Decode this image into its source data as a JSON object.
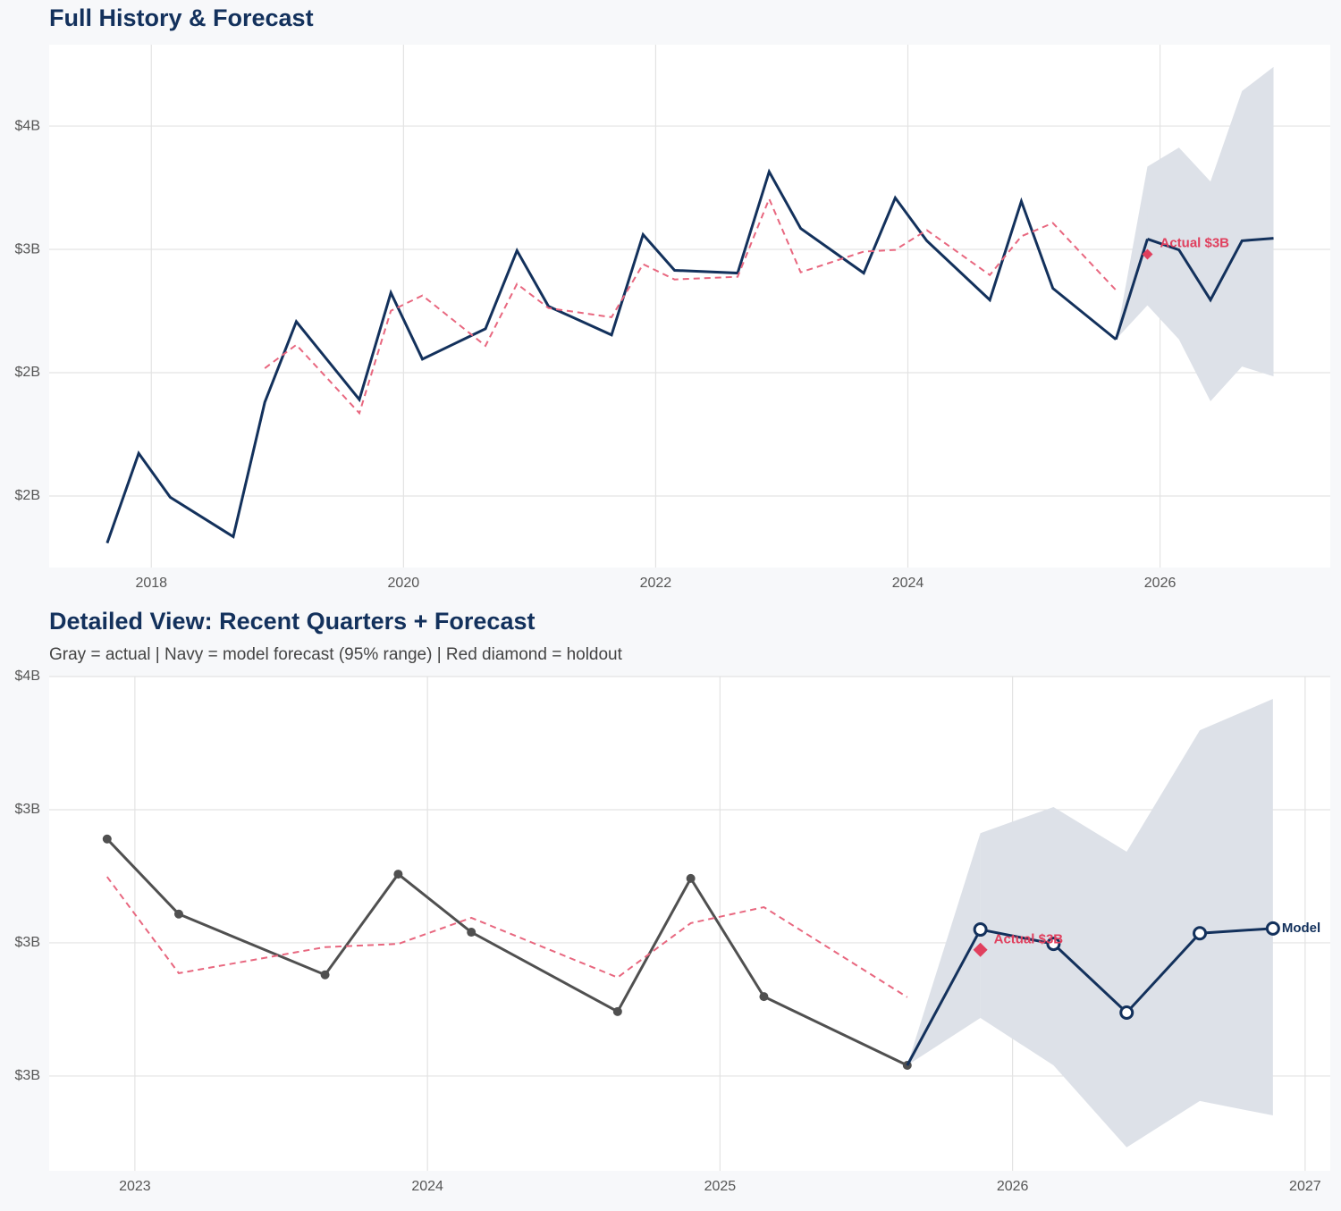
{
  "chart_data": [
    {
      "type": "line",
      "title": "Full History & Forecast",
      "x": [
        2017.65,
        2017.9,
        2018.15,
        2018.65,
        2018.9,
        2019.15,
        2019.65,
        2019.9,
        2020.15,
        2020.65,
        2020.9,
        2021.15,
        2021.65,
        2021.9,
        2022.15,
        2022.65,
        2022.9,
        2023.15,
        2023.65,
        2023.9,
        2024.15,
        2024.65,
        2024.9,
        2025.15,
        2025.65
      ],
      "series": [
        {
          "color": "#13315c",
          "values": [
            1.809,
            2.173,
            1.995,
            1.835,
            2.38,
            2.707,
            2.391,
            2.824,
            2.555,
            2.678,
            2.995,
            2.769,
            2.653,
            3.06,
            2.915,
            2.904,
            3.315,
            3.085,
            2.904,
            3.209,
            3.035,
            2.795,
            3.195,
            2.842,
            2.635
          ]
        },
        {
          "color": "#e8677f",
          "dashed": true,
          "values": [
            null,
            null,
            null,
            null,
            2.518,
            2.613,
            2.336,
            2.751,
            2.813,
            2.609,
            2.86,
            2.762,
            2.725,
            2.94,
            2.878,
            2.889,
            3.205,
            2.907,
            2.991,
            2.998,
            3.078,
            2.896,
            3.053,
            3.107,
            2.835
          ]
        }
      ],
      "forecast": {
        "x": [
          2025.9,
          2026.15,
          2026.4,
          2026.65,
          2026.9
        ],
        "values": [
          3.042,
          2.998,
          2.795,
          3.035,
          3.045
        ],
        "lower": [
          2.773,
          2.635,
          2.384,
          2.525,
          2.485
        ],
        "upper": [
          3.336,
          3.413,
          3.275,
          3.642,
          3.74
        ],
        "color": "#13315c",
        "band_color": "#dde1e8"
      },
      "holdout": {
        "x": 2025.9,
        "value": 2.98,
        "label": "Actual $3B",
        "color": "#e0405e"
      },
      "xlim": [
        2017.19,
        2027.35
      ],
      "ylim": [
        1.71,
        3.83
      ],
      "xticks": [
        2018,
        2020,
        2022,
        2024,
        2026
      ],
      "yticks": [
        {
          "value": 2.0,
          "label": "$2B"
        },
        {
          "value": 2.5,
          "label": "$2B"
        },
        {
          "value": 3.0,
          "label": "$3B"
        },
        {
          "value": 3.5,
          "label": "$4B"
        }
      ],
      "grid": true,
      "markers": false
    },
    {
      "type": "line",
      "title": "Detailed View: Recent Quarters + Forecast",
      "subtitle": "Gray = actual  |  Navy = model forecast (95% range)  |  Red diamond = holdout",
      "x": [
        2022.905,
        2023.15,
        2023.65,
        2023.9,
        2024.15,
        2024.65,
        2024.9,
        2025.15,
        2025.64
      ],
      "series": [
        {
          "color": "#505050",
          "values": [
            3.195,
            3.054,
            2.94,
            3.129,
            3.02,
            2.871,
            3.121,
            2.899,
            2.77
          ]
        },
        {
          "color": "#e8677f",
          "dashed": true,
          "values": [
            3.124,
            2.943,
            2.992,
            2.998,
            3.047,
            2.935,
            3.037,
            3.067,
            2.898
          ]
        }
      ],
      "forecast": {
        "name": "Model",
        "x": [
          2025.89,
          2026.14,
          2026.39,
          2026.64,
          2026.89
        ],
        "values": [
          3.025,
          2.998,
          2.869,
          3.018,
          3.027
        ],
        "lower": [
          2.859,
          2.77,
          2.616,
          2.703,
          2.676
        ],
        "upper": [
          3.206,
          3.255,
          3.171,
          3.399,
          3.458
        ],
        "color": "#13315c",
        "band_color": "#dde1e8"
      },
      "holdout": {
        "x": 2025.89,
        "value": 2.987,
        "label": "Actual $3B",
        "color": "#e0405e"
      },
      "xlim": [
        2022.707,
        2027.086
      ],
      "ylim": [
        2.572,
        3.5
      ],
      "xticks": [
        2023,
        2024,
        2025,
        2026,
        2027
      ],
      "yticks": [
        {
          "value": 2.75,
          "label": "$3B"
        },
        {
          "value": 3.0,
          "label": "$3B"
        },
        {
          "value": 3.25,
          "label": "$3B"
        },
        {
          "value": 3.5,
          "label": "$4B"
        }
      ],
      "grid": true,
      "markers": true
    }
  ]
}
